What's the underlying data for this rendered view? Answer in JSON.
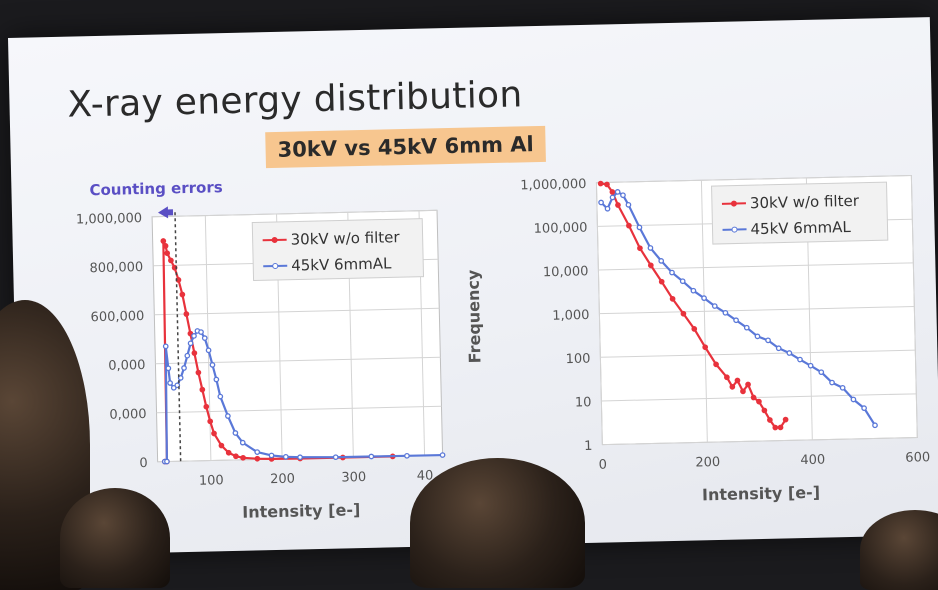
{
  "slide": {
    "title": "X-ray energy distribution",
    "subtitle": "30kV  vs  45kV 6mm Al",
    "annotation": "Counting errors",
    "annotation_color": "#5a4fc4",
    "highlight_color": "#f7c68f"
  },
  "chart_data": [
    {
      "type": "line",
      "scale": "linear",
      "xlabel": "Intensity [e-]",
      "ylabel": "",
      "xticks": [
        "100",
        "200",
        "300",
        "40"
      ],
      "xlim": [
        0,
        400
      ],
      "yticks": [
        "0",
        "0,000",
        "0,000",
        "600,000",
        "800,000",
        "1,000,000"
      ],
      "ylim": [
        0,
        1000000
      ],
      "grid": true,
      "legend_position": "top-right",
      "series": [
        {
          "name": "30kV w/o filter",
          "color": "#e8323c",
          "x": [
            10,
            13,
            15,
            18,
            20,
            25,
            30,
            35,
            40,
            45,
            50,
            55,
            60,
            65,
            70,
            75,
            80,
            90,
            100,
            110,
            120,
            140,
            160,
            200,
            260,
            330
          ],
          "y": [
            0,
            0,
            900000,
            880000,
            850000,
            820000,
            790000,
            740000,
            680000,
            600000,
            520000,
            440000,
            360000,
            290000,
            220000,
            160000,
            110000,
            60000,
            30000,
            15000,
            8000,
            3000,
            1000,
            0,
            0,
            0
          ]
        },
        {
          "name": "45kV 6mmAL",
          "color": "#5a78d8",
          "x": [
            10,
            13,
            15,
            18,
            20,
            25,
            30,
            35,
            40,
            45,
            50,
            55,
            60,
            65,
            70,
            75,
            80,
            85,
            90,
            100,
            110,
            120,
            140,
            160,
            180,
            200,
            250,
            300,
            350,
            400
          ],
          "y": [
            0,
            0,
            470000,
            380000,
            320000,
            300000,
            310000,
            340000,
            380000,
            430000,
            480000,
            510000,
            530000,
            525000,
            500000,
            450000,
            390000,
            330000,
            260000,
            180000,
            110000,
            70000,
            30000,
            15000,
            8000,
            5000,
            2000,
            1500,
            1000,
            800
          ]
        }
      ]
    },
    {
      "type": "line",
      "scale": "log",
      "xlabel": "Intensity [e-]",
      "ylabel": "Frequency",
      "xticks": [
        "0",
        "200",
        "400",
        "600"
      ],
      "xlim": [
        0,
        600
      ],
      "yticks": [
        "1",
        "10",
        "100",
        "1,000",
        "10,000",
        "100,000",
        "1,000,000"
      ],
      "ylim": [
        1,
        1000000
      ],
      "grid": true,
      "legend_position": "top-right",
      "series": [
        {
          "name": "30kV w/o filter",
          "color": "#e8323c",
          "x": [
            8,
            20,
            30,
            40,
            60,
            80,
            100,
            120,
            140,
            160,
            180,
            200,
            220,
            240,
            250,
            260,
            270,
            280,
            290,
            300,
            310,
            320,
            330,
            340,
            350
          ],
          "y": [
            950000,
            900000,
            600000,
            300000,
            100000,
            30000,
            12000,
            5000,
            2000,
            900,
            400,
            150,
            60,
            30,
            18,
            25,
            14,
            20,
            10,
            8,
            5,
            3,
            2,
            2,
            3
          ]
        },
        {
          "name": "45kV 6mmAL",
          "color": "#5a78d8",
          "x": [
            8,
            20,
            30,
            40,
            50,
            60,
            80,
            100,
            120,
            140,
            160,
            180,
            200,
            220,
            240,
            260,
            280,
            300,
            320,
            340,
            360,
            380,
            400,
            420,
            440,
            460,
            480,
            500,
            520
          ],
          "y": [
            350000,
            250000,
            450000,
            600000,
            500000,
            300000,
            90000,
            30000,
            15000,
            8000,
            5000,
            3000,
            2000,
            1300,
            900,
            600,
            400,
            250,
            200,
            130,
            100,
            70,
            50,
            35,
            20,
            15,
            8,
            5,
            2
          ]
        }
      ]
    }
  ]
}
